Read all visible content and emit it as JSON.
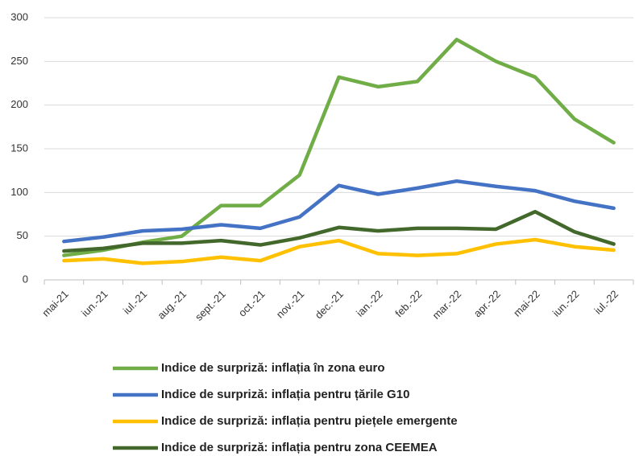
{
  "chart_data": {
    "type": "line",
    "categories": [
      "mai-21",
      "iun.-21",
      "iul.-21",
      "aug.-21",
      "sept.-21",
      "oct.-21",
      "nov.-21",
      "dec.-21",
      "ian.-22",
      "feb.-22",
      "mar.-22",
      "apr.-22",
      "mai-22",
      "iun.-22",
      "iul.-22"
    ],
    "series": [
      {
        "name": "Indice de surpriză: inflația în zona euro",
        "color": "#70ad47",
        "values": [
          28,
          34,
          43,
          50,
          85,
          85,
          120,
          232,
          221,
          227,
          275,
          250,
          232,
          184,
          157
        ]
      },
      {
        "name": "Indice de surpriză: inflația pentru țările G10",
        "color": "#4472c4",
        "values": [
          44,
          49,
          56,
          58,
          63,
          59,
          72,
          108,
          98,
          105,
          113,
          107,
          102,
          90,
          82
        ]
      },
      {
        "name": "Indice de surpriză: inflația pentru piețele emergente",
        "color": "#ffc000",
        "values": [
          22,
          24,
          19,
          21,
          26,
          22,
          38,
          45,
          30,
          28,
          30,
          41,
          46,
          38,
          34
        ]
      },
      {
        "name": "Indice de surpriză: inflația pentru zona CEEMEA",
        "color": "#43682b",
        "values": [
          33,
          36,
          42,
          42,
          45,
          40,
          48,
          60,
          56,
          59,
          59,
          58,
          78,
          55,
          41
        ]
      }
    ],
    "ylim": [
      0,
      300
    ],
    "yticks": [
      0,
      50,
      100,
      150,
      200,
      250,
      300
    ],
    "grid": true,
    "legend": "bottom"
  }
}
